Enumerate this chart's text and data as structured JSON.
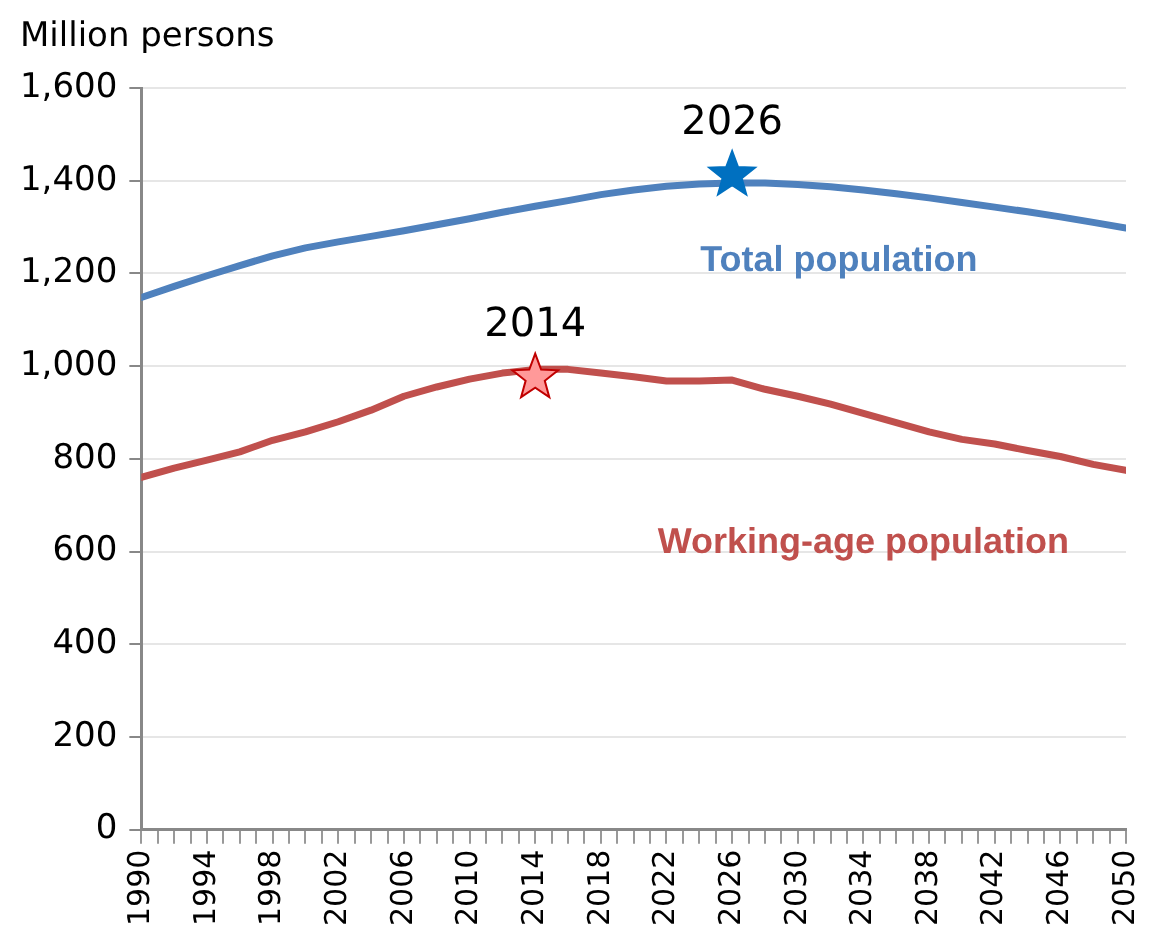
{
  "chart_data": {
    "type": "line",
    "ylabel": "Million persons",
    "xlim": [
      1990,
      2050
    ],
    "xticks": [
      1990,
      {
        "value": 1991,
        "label": null
      },
      {
        "value": 1992,
        "label": null
      },
      {
        "value": 1993,
        "label": null
      },
      1994,
      {
        "value": 1995,
        "label": null
      },
      {
        "value": 1996,
        "label": null
      },
      {
        "value": 1997,
        "label": null
      },
      1998,
      {
        "value": 1999,
        "label": null
      },
      {
        "value": 2000,
        "label": null
      },
      {
        "value": 2001,
        "label": null
      },
      2002,
      {
        "value": 2003,
        "label": null
      },
      {
        "value": 2004,
        "label": null
      },
      {
        "value": 2005,
        "label": null
      },
      2006,
      {
        "value": 2007,
        "label": null
      },
      {
        "value": 2008,
        "label": null
      },
      {
        "value": 2009,
        "label": null
      },
      2010,
      {
        "value": 2011,
        "label": null
      },
      {
        "value": 2012,
        "label": null
      },
      {
        "value": 2013,
        "label": null
      },
      2014,
      {
        "value": 2015,
        "label": null
      },
      {
        "value": 2016,
        "label": null
      },
      {
        "value": 2017,
        "label": null
      },
      2018,
      {
        "value": 2019,
        "label": null
      },
      {
        "value": 2020,
        "label": null
      },
      {
        "value": 2021,
        "label": null
      },
      2022,
      {
        "value": 2023,
        "label": null
      },
      {
        "value": 2024,
        "label": null
      },
      {
        "value": 2025,
        "label": null
      },
      2026,
      {
        "value": 2027,
        "label": null
      },
      {
        "value": 2028,
        "label": null
      },
      {
        "value": 2029,
        "label": null
      },
      2030,
      {
        "value": 2031,
        "label": null
      },
      {
        "value": 2032,
        "label": null
      },
      {
        "value": 2033,
        "label": null
      },
      2034,
      {
        "value": 2035,
        "label": null
      },
      {
        "value": 2036,
        "label": null
      },
      {
        "value": 2037,
        "label": null
      },
      2038,
      {
        "value": 2039,
        "label": null
      },
      {
        "value": 2040,
        "label": null
      },
      {
        "value": 2041,
        "label": null
      },
      2042,
      {
        "value": 2043,
        "label": null
      },
      {
        "value": 2044,
        "label": null
      },
      {
        "value": 2045,
        "label": null
      },
      2046,
      {
        "value": 2047,
        "label": null
      },
      {
        "value": 2048,
        "label": null
      },
      {
        "value": 2049,
        "label": null
      },
      2050
    ],
    "ylim": [
      0,
      1600
    ],
    "yticks": [
      0,
      200,
      400,
      600,
      800,
      {
        "value": 1000,
        "label": "1,000"
      },
      {
        "value": 1200,
        "label": "1,200"
      },
      {
        "value": 1400,
        "label": "1,400"
      },
      {
        "value": 1600,
        "label": "1,600"
      }
    ],
    "grid": "y",
    "legend": false,
    "line_style": "solid",
    "series": [
      {
        "name": "Total population",
        "color": "#4f81bd",
        "marker": "none",
        "x": [
          1990,
          1992,
          1994,
          1996,
          1998,
          2000,
          2002,
          2004,
          2006,
          2008,
          2010,
          2012,
          2014,
          2016,
          2018,
          2020,
          2022,
          2024,
          2026,
          2028,
          2030,
          2032,
          2034,
          2036,
          2038,
          2040,
          2042,
          2044,
          2046,
          2048,
          2050
        ],
        "values": [
          1148,
          1172,
          1195,
          1217,
          1238,
          1255,
          1268,
          1280,
          1292,
          1305,
          1318,
          1332,
          1345,
          1357,
          1370,
          1380,
          1388,
          1393,
          1395,
          1395,
          1392,
          1387,
          1380,
          1372,
          1363,
          1353,
          1343,
          1333,
          1322,
          1310,
          1298
        ]
      },
      {
        "name": "Working-age population",
        "color": "#c0504d",
        "marker": "none",
        "x": [
          1990,
          1992,
          1994,
          1996,
          1998,
          2000,
          2002,
          2004,
          2006,
          2008,
          2010,
          2012,
          2014,
          2016,
          2018,
          2020,
          2022,
          2024,
          2026,
          2028,
          2030,
          2032,
          2034,
          2036,
          2038,
          2040,
          2042,
          2044,
          2046,
          2048,
          2050
        ],
        "values": [
          760,
          780,
          797,
          815,
          840,
          858,
          880,
          905,
          935,
          955,
          972,
          985,
          993,
          993,
          985,
          977,
          968,
          968,
          970,
          950,
          935,
          918,
          898,
          878,
          858,
          842,
          832,
          818,
          805,
          788,
          775
        ]
      },
      {
        "type": "scatter",
        "color": "#0070c0",
        "marker": "star",
        "x": [
          2026
        ],
        "values": [
          1412
        ]
      },
      {
        "type": "scatter",
        "color": "#ff9999",
        "marker": "star",
        "x": [
          2014
        ],
        "values": [
          975
        ]
      }
    ],
    "annotations": [
      {
        "text": "2026",
        "x": 2026,
        "y": 1412
      },
      {
        "text": "2014",
        "x": 2014,
        "y": 975
      }
    ]
  }
}
